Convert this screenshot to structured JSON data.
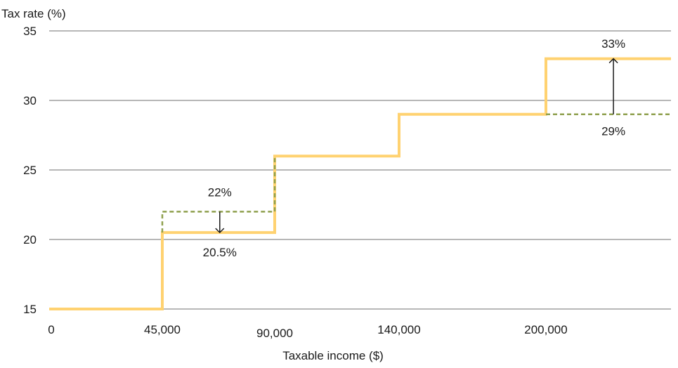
{
  "chart_data": {
    "type": "line",
    "ylabel": "Tax rate (%)",
    "xlabel": "Taxable income ($)",
    "ylim": [
      15,
      35
    ],
    "yticks": [
      "15",
      "20",
      "25",
      "30",
      "35"
    ],
    "xticks": [
      "0",
      "45,000",
      "90,000",
      "140,000",
      "200,000"
    ],
    "grid": true,
    "series": [
      {
        "style": "step-solid",
        "color": "#FFD271",
        "x": [
          0,
          45000,
          45000,
          90000,
          90000,
          140000,
          140000,
          200000,
          200000,
          250000
        ],
        "y": [
          15,
          15,
          20.5,
          20.5,
          26,
          26,
          29,
          29,
          33,
          33
        ]
      },
      {
        "style": "step-dashed",
        "color": "#8FA04E",
        "x": [
          45000,
          45000,
          90000,
          90000
        ],
        "y": [
          20.5,
          22,
          22,
          26
        ]
      },
      {
        "style": "dashed",
        "color": "#8FA04E",
        "x": [
          200000,
          250000
        ],
        "y": [
          29,
          29
        ]
      }
    ],
    "annotations": [
      {
        "text": "22%",
        "x": 68000,
        "y": 23.1
      },
      {
        "text": "20.5%",
        "x": 68000,
        "y": 18.8
      },
      {
        "text": "33%",
        "x": 227000,
        "y": 33.8
      },
      {
        "text": "29%",
        "x": 227000,
        "y": 27.5
      }
    ],
    "arrows": [
      {
        "x": 68000,
        "from": 22,
        "to": 20.5
      },
      {
        "x": 227000,
        "from": 29,
        "to": 33
      }
    ]
  }
}
